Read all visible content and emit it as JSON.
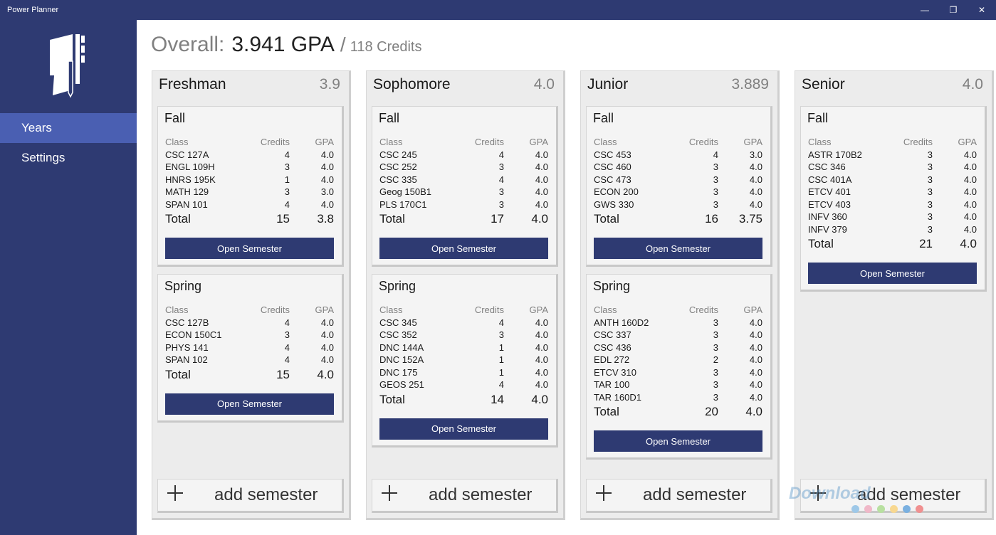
{
  "window": {
    "title": "Power Planner",
    "minimize": "—",
    "restore": "❐",
    "close": "✕"
  },
  "sidebar": {
    "items": [
      {
        "label": "Years"
      },
      {
        "label": "Settings"
      }
    ]
  },
  "overall": {
    "label": "Overall:",
    "gpa": "3.941 GPA",
    "slash": "/",
    "credits": "118 Credits"
  },
  "columns": {
    "class": "Class",
    "credits": "Credits",
    "gpa": "GPA"
  },
  "open_semester_label": "Open Semester",
  "add_semester_label": "add semester",
  "years": [
    {
      "name": "Freshman",
      "gpa": "3.9",
      "semesters": [
        {
          "name": "Fall",
          "classes": [
            [
              "CSC 127A",
              "4",
              "4.0"
            ],
            [
              "ENGL 109H",
              "3",
              "4.0"
            ],
            [
              "HNRS 195K",
              "1",
              "4.0"
            ],
            [
              "MATH 129",
              "3",
              "3.0"
            ],
            [
              "SPAN 101",
              "4",
              "4.0"
            ]
          ],
          "total": {
            "label": "Total",
            "credits": "15",
            "gpa": "3.8"
          }
        },
        {
          "name": "Spring",
          "classes": [
            [
              "CSC 127B",
              "4",
              "4.0"
            ],
            [
              "ECON 150C1",
              "3",
              "4.0"
            ],
            [
              "PHYS 141",
              "4",
              "4.0"
            ],
            [
              "SPAN 102",
              "4",
              "4.0"
            ]
          ],
          "total": {
            "label": "Total",
            "credits": "15",
            "gpa": "4.0"
          }
        }
      ]
    },
    {
      "name": "Sophomore",
      "gpa": "4.0",
      "semesters": [
        {
          "name": "Fall",
          "classes": [
            [
              "CSC 245",
              "4",
              "4.0"
            ],
            [
              "CSC 252",
              "3",
              "4.0"
            ],
            [
              "CSC 335",
              "4",
              "4.0"
            ],
            [
              "Geog 150B1",
              "3",
              "4.0"
            ],
            [
              "PLS 170C1",
              "3",
              "4.0"
            ]
          ],
          "total": {
            "label": "Total",
            "credits": "17",
            "gpa": "4.0"
          }
        },
        {
          "name": "Spring",
          "classes": [
            [
              "CSC 345",
              "4",
              "4.0"
            ],
            [
              "CSC 352",
              "3",
              "4.0"
            ],
            [
              "DNC 144A",
              "1",
              "4.0"
            ],
            [
              "DNC 152A",
              "1",
              "4.0"
            ],
            [
              "DNC 175",
              "1",
              "4.0"
            ],
            [
              "GEOS 251",
              "4",
              "4.0"
            ]
          ],
          "total": {
            "label": "Total",
            "credits": "14",
            "gpa": "4.0"
          }
        }
      ]
    },
    {
      "name": "Junior",
      "gpa": "3.889",
      "semesters": [
        {
          "name": "Fall",
          "classes": [
            [
              "CSC 453",
              "4",
              "3.0"
            ],
            [
              "CSC 460",
              "3",
              "4.0"
            ],
            [
              "CSC 473",
              "3",
              "4.0"
            ],
            [
              "ECON 200",
              "3",
              "4.0"
            ],
            [
              "GWS 330",
              "3",
              "4.0"
            ]
          ],
          "total": {
            "label": "Total",
            "credits": "16",
            "gpa": "3.75"
          }
        },
        {
          "name": "Spring",
          "classes": [
            [
              "ANTH 160D2",
              "3",
              "4.0"
            ],
            [
              "CSC 337",
              "3",
              "4.0"
            ],
            [
              "CSC 436",
              "3",
              "4.0"
            ],
            [
              "EDL 272",
              "2",
              "4.0"
            ],
            [
              "ETCV 310",
              "3",
              "4.0"
            ],
            [
              "TAR 100",
              "3",
              "4.0"
            ],
            [
              "TAR 160D1",
              "3",
              "4.0"
            ]
          ],
          "total": {
            "label": "Total",
            "credits": "20",
            "gpa": "4.0"
          }
        }
      ]
    },
    {
      "name": "Senior",
      "gpa": "4.0",
      "semesters": [
        {
          "name": "Fall",
          "classes": [
            [
              "ASTR 170B2",
              "3",
              "4.0"
            ],
            [
              "CSC 346",
              "3",
              "4.0"
            ],
            [
              "CSC 401A",
              "3",
              "4.0"
            ],
            [
              "ETCV 401",
              "3",
              "4.0"
            ],
            [
              "ETCV 403",
              "3",
              "4.0"
            ],
            [
              "INFV 360",
              "3",
              "4.0"
            ],
            [
              "INFV 379",
              "3",
              "4.0"
            ]
          ],
          "total": {
            "label": "Total",
            "credits": "21",
            "gpa": "4.0"
          }
        }
      ]
    }
  ],
  "watermark": {
    "text": "Download",
    "dot_colors": [
      "#9ec8e8",
      "#f0b8c8",
      "#b8e0a0",
      "#f8d890",
      "#7ab0e0",
      "#f09090"
    ]
  },
  "colors": {
    "accent": "#2e3a72",
    "nav_selected": "#4a5fb2",
    "panel": "#ececec",
    "card": "#f4f4f4"
  }
}
